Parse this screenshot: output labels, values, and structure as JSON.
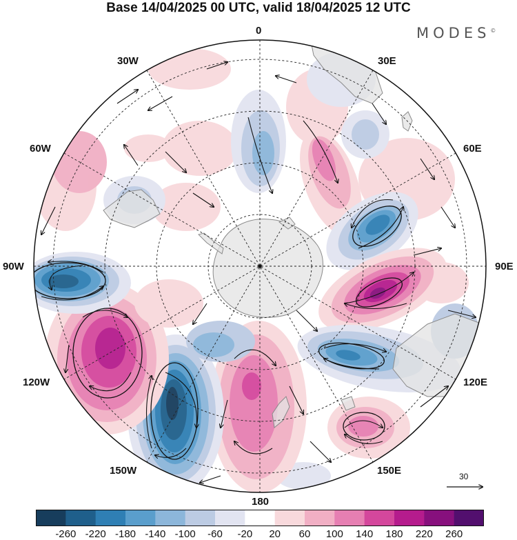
{
  "title": "Base 14/04/2025 00 UTC, valid 18/04/2025 12 UTC",
  "brand": "MODES",
  "brand_mark": "©",
  "longitude_labels": {
    "lon_0": "0",
    "lon_30e": "30E",
    "lon_60e": "60E",
    "lon_90e": "90E",
    "lon_120e": "120E",
    "lon_150e": "150E",
    "lon_180": "180",
    "lon_150w": "150W",
    "lon_120w": "120W",
    "lon_90w": "90W",
    "lon_60w": "60W",
    "lon_30w": "30W"
  },
  "reference_vector": "30",
  "colorbar": {
    "ticks": [
      "-260",
      "-220",
      "-180",
      "-140",
      "-100",
      "-60",
      "-20",
      "20",
      "60",
      "100",
      "140",
      "180",
      "220",
      "260"
    ],
    "colors": [
      "#173d5c",
      "#1f5f8b",
      "#2f7fb4",
      "#5a9ecc",
      "#8cb6da",
      "#bccbe3",
      "#e2e4f1",
      "#ffffff",
      "#f8d9dc",
      "#f1afc4",
      "#e67fb2",
      "#d4479c",
      "#b51c8d",
      "#87107d",
      "#520f6e"
    ]
  },
  "map_colors": {
    "ocean_outline": "#111111",
    "land": "#e3e3e3",
    "coast": "#8a8a8a",
    "grid": "#222222"
  }
}
